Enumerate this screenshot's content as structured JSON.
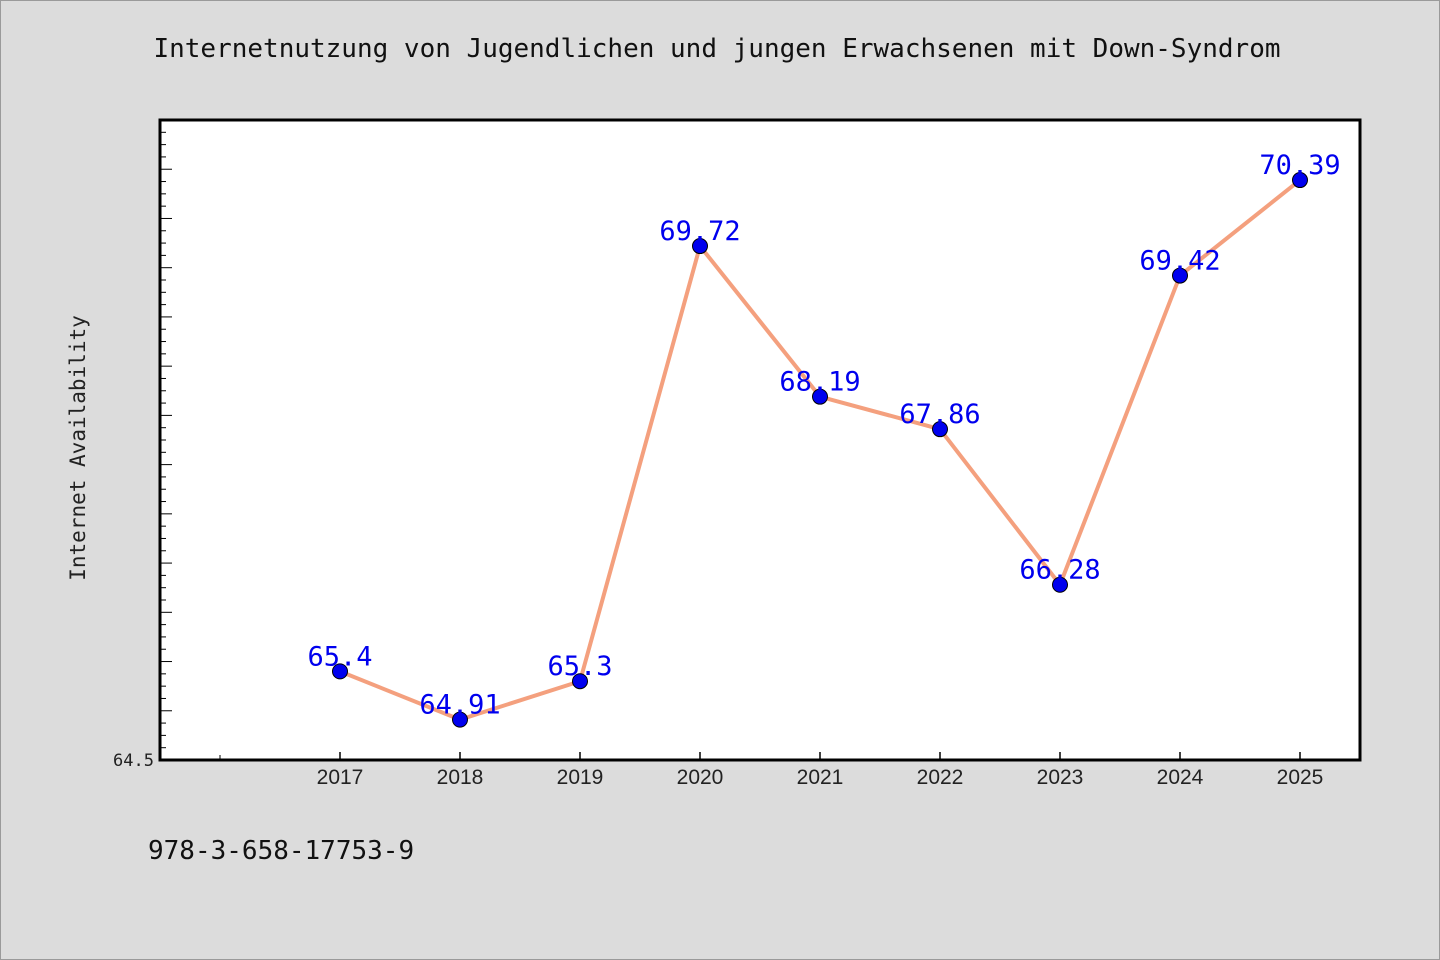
{
  "title": "Internetnutzung von Jugendlichen und jungen Erwachsenen mit Down-Syndrom",
  "footer_text": "978-3-658-17753-9",
  "chart_data": {
    "type": "line",
    "title": "Internetnutzung von Jugendlichen und jungen Erwachsenen mit Down-Syndrom",
    "xlabel": "",
    "ylabel": "Internet Availability",
    "categories": [
      "2017",
      "2018",
      "2019",
      "2020",
      "2021",
      "2022",
      "2023",
      "2024",
      "2025"
    ],
    "series": [
      {
        "values": [
          65.4,
          64.91,
          65.3,
          69.72,
          68.19,
          67.86,
          66.28,
          69.42,
          70.39
        ],
        "labels": [
          "65.4",
          "64.91",
          "65.3",
          "69.72",
          "68.19",
          "67.86",
          "66.28",
          "69.42",
          "70.39"
        ]
      }
    ],
    "ylim": [
      64.5,
      71.0
    ],
    "y_tick_labels": [
      "64.5"
    ],
    "grid": false,
    "line_color": "#f4a07e",
    "marker_color": "#0000ee",
    "label_color": "#0000ee",
    "plot_background": "#ffffff",
    "page_background": "#dcdcdc"
  }
}
